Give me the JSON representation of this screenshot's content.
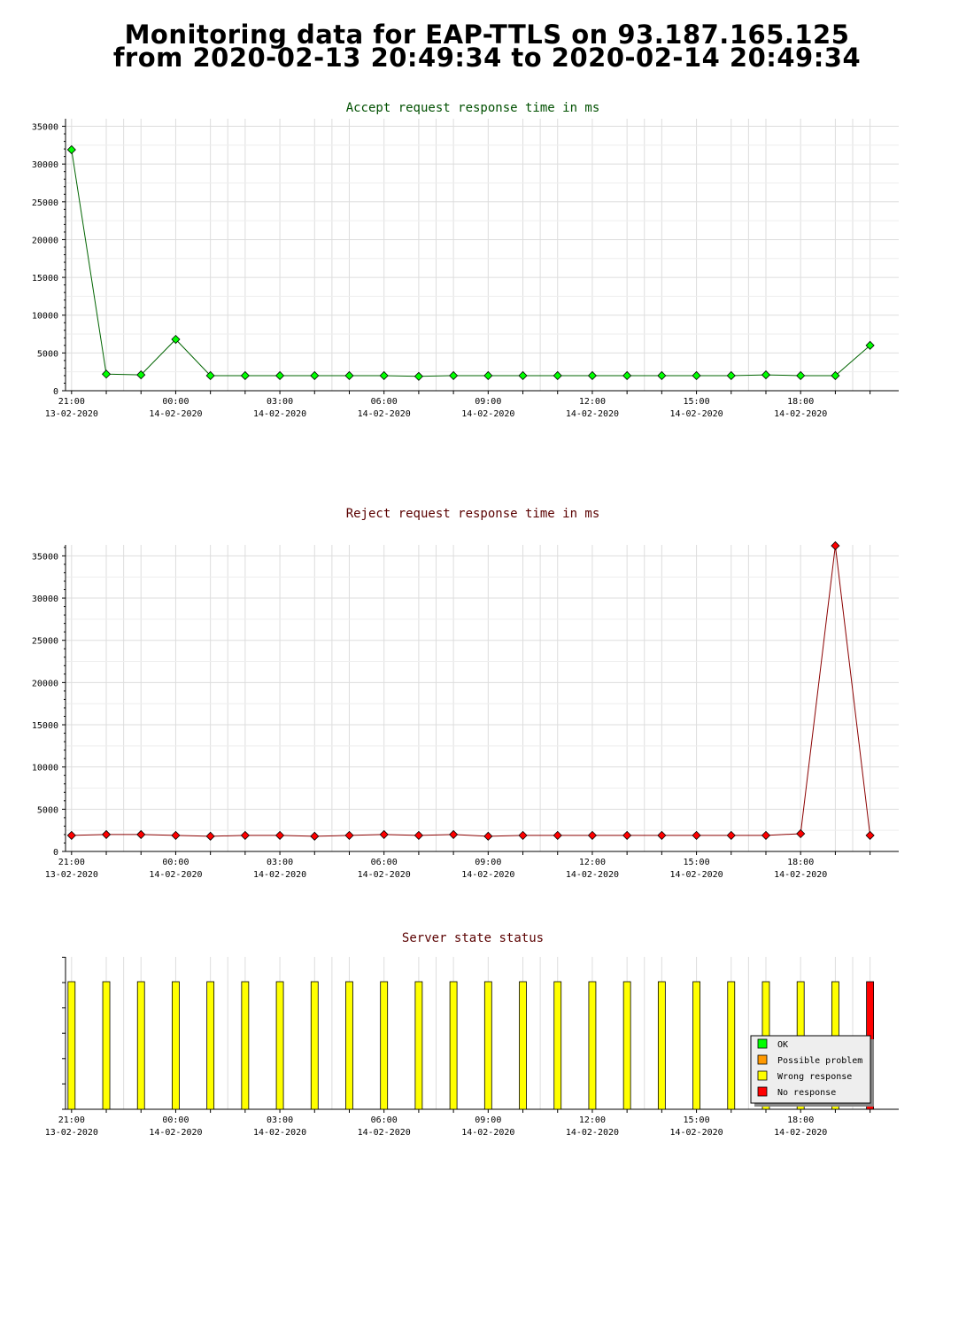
{
  "page": {
    "title_line1": "Monitoring data for EAP-TTLS on 93.187.165.125",
    "title_line2": "from 2020-02-13 20:49:34 to 2020-02-14 20:49:34"
  },
  "colors": {
    "accept_line": "#006400",
    "accept_marker": "#00ff00",
    "reject_line": "#8b0000",
    "reject_marker": "#ff0000",
    "ok": "#00ff00",
    "possible_problem": "#ff9900",
    "wrong_response": "#ffff00",
    "no_response": "#ff0000",
    "grid": "#dddddd"
  },
  "chart_data": [
    {
      "type": "line",
      "title": "Accept request response time in ms",
      "x_ticks": [
        {
          "time": "21:00",
          "date": "13-02-2020"
        },
        {
          "time": "00:00",
          "date": "14-02-2020"
        },
        {
          "time": "03:00",
          "date": "14-02-2020"
        },
        {
          "time": "06:00",
          "date": "14-02-2020"
        },
        {
          "time": "09:00",
          "date": "14-02-2020"
        },
        {
          "time": "12:00",
          "date": "14-02-2020"
        },
        {
          "time": "15:00",
          "date": "14-02-2020"
        },
        {
          "time": "18:00",
          "date": "14-02-2020"
        }
      ],
      "yticks": [
        0,
        5000,
        10000,
        15000,
        20000,
        25000,
        30000,
        35000
      ],
      "ylim": [
        0,
        36000
      ],
      "x": [
        "2020-02-13 21:00",
        "2020-02-13 22:00",
        "2020-02-13 23:00",
        "2020-02-14 00:00",
        "2020-02-14 01:00",
        "2020-02-14 02:00",
        "2020-02-14 03:00",
        "2020-02-14 04:00",
        "2020-02-14 05:00",
        "2020-02-14 06:00",
        "2020-02-14 07:00",
        "2020-02-14 08:00",
        "2020-02-14 09:00",
        "2020-02-14 10:00",
        "2020-02-14 11:00",
        "2020-02-14 12:00",
        "2020-02-14 13:00",
        "2020-02-14 14:00",
        "2020-02-14 15:00",
        "2020-02-14 16:00",
        "2020-02-14 17:00",
        "2020-02-14 18:00",
        "2020-02-14 19:00",
        "2020-02-14 20:00"
      ],
      "values": [
        31900,
        2200,
        2100,
        6800,
        2000,
        2000,
        2000,
        2000,
        2000,
        2000,
        1900,
        2000,
        2000,
        2000,
        2000,
        2000,
        2000,
        2000,
        2000,
        2000,
        2100,
        2000,
        2000,
        6000
      ],
      "grid": true
    },
    {
      "type": "line",
      "title": "Reject request response time in ms",
      "x_ticks": [
        {
          "time": "21:00",
          "date": "13-02-2020"
        },
        {
          "time": "00:00",
          "date": "14-02-2020"
        },
        {
          "time": "03:00",
          "date": "14-02-2020"
        },
        {
          "time": "06:00",
          "date": "14-02-2020"
        },
        {
          "time": "09:00",
          "date": "14-02-2020"
        },
        {
          "time": "12:00",
          "date": "14-02-2020"
        },
        {
          "time": "15:00",
          "date": "14-02-2020"
        },
        {
          "time": "18:00",
          "date": "14-02-2020"
        }
      ],
      "yticks": [
        0,
        5000,
        10000,
        15000,
        20000,
        25000,
        30000,
        35000
      ],
      "ylim": [
        0,
        36300
      ],
      "x": [
        "2020-02-13 21:00",
        "2020-02-13 22:00",
        "2020-02-13 23:00",
        "2020-02-14 00:00",
        "2020-02-14 01:00",
        "2020-02-14 02:00",
        "2020-02-14 03:00",
        "2020-02-14 04:00",
        "2020-02-14 05:00",
        "2020-02-14 06:00",
        "2020-02-14 07:00",
        "2020-02-14 08:00",
        "2020-02-14 09:00",
        "2020-02-14 10:00",
        "2020-02-14 11:00",
        "2020-02-14 12:00",
        "2020-02-14 13:00",
        "2020-02-14 14:00",
        "2020-02-14 15:00",
        "2020-02-14 16:00",
        "2020-02-14 17:00",
        "2020-02-14 18:00",
        "2020-02-14 19:00",
        "2020-02-14 20:00"
      ],
      "values": [
        1900,
        2000,
        2000,
        1900,
        1800,
        1900,
        1900,
        1800,
        1900,
        2000,
        1900,
        2000,
        1800,
        1900,
        1900,
        1900,
        1900,
        1900,
        1900,
        1900,
        1900,
        2100,
        36200,
        1900
      ],
      "grid": true
    },
    {
      "type": "bar",
      "title": "Server state status",
      "x_ticks": [
        {
          "time": "21:00",
          "date": "13-02-2020"
        },
        {
          "time": "00:00",
          "date": "14-02-2020"
        },
        {
          "time": "03:00",
          "date": "14-02-2020"
        },
        {
          "time": "06:00",
          "date": "14-02-2020"
        },
        {
          "time": "09:00",
          "date": "14-02-2020"
        },
        {
          "time": "12:00",
          "date": "14-02-2020"
        },
        {
          "time": "15:00",
          "date": "14-02-2020"
        },
        {
          "time": "18:00",
          "date": "14-02-2020"
        }
      ],
      "states": [
        "Wrong response",
        "Wrong response",
        "Wrong response",
        "Wrong response",
        "Wrong response",
        "Wrong response",
        "Wrong response",
        "Wrong response",
        "Wrong response",
        "Wrong response",
        "Wrong response",
        "Wrong response",
        "Wrong response",
        "Wrong response",
        "Wrong response",
        "Wrong response",
        "Wrong response",
        "Wrong response",
        "Wrong response",
        "Wrong response",
        "Wrong response",
        "Wrong response",
        "Wrong response",
        "No response"
      ],
      "legend": [
        "OK",
        "Possible problem",
        "Wrong response",
        "No response"
      ],
      "legend_position": "bottom-right"
    }
  ]
}
